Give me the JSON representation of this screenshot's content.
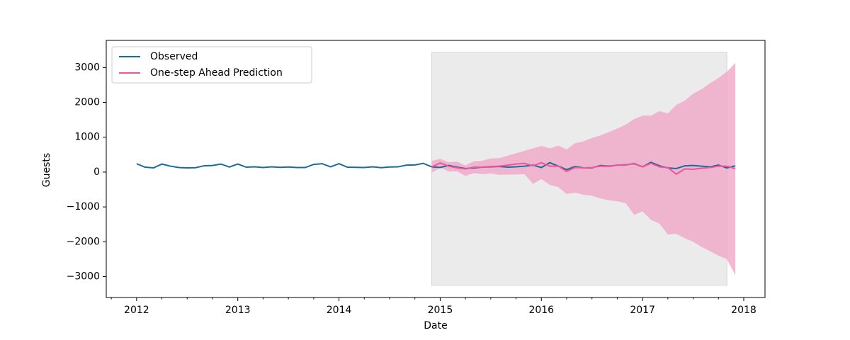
{
  "chart_data": {
    "type": "line",
    "xlabel": "Date",
    "ylabel": "Guests",
    "xlim": [
      2011.7,
      2018.21
    ],
    "xticks": [
      2012,
      2013,
      2014,
      2015,
      2016,
      2017,
      2018
    ],
    "ylim": [
      -3600,
      3780
    ],
    "yticks": [
      {
        "value": -3000,
        "label": "−3000"
      },
      {
        "value": -2000,
        "label": "−2000"
      },
      {
        "value": -1000,
        "label": "−1000"
      },
      0,
      1000,
      2000,
      3000
    ],
    "legend": "upper left",
    "highlight": {
      "xlim": [
        2014.917,
        2017.833
      ],
      "ylim": [
        -3250,
        3440
      ],
      "color": "#ebebeb"
    },
    "series": [
      {
        "name": "Observed",
        "color": "#1a6b9a",
        "x": [
          2012,
          2012.083,
          2012.167,
          2012.25,
          2012.333,
          2012.417,
          2012.5,
          2012.583,
          2012.667,
          2012.75,
          2012.833,
          2012.917,
          2013,
          2013.083,
          2013.167,
          2013.25,
          2013.333,
          2013.417,
          2013.5,
          2013.583,
          2013.667,
          2013.75,
          2013.833,
          2013.917,
          2014,
          2014.083,
          2014.167,
          2014.25,
          2014.333,
          2014.417,
          2014.5,
          2014.583,
          2014.667,
          2014.75,
          2014.833,
          2014.917,
          2015,
          2015.083,
          2015.167,
          2015.25,
          2015.333,
          2015.417,
          2015.5,
          2015.583,
          2015.667,
          2015.75,
          2015.833,
          2015.917,
          2016,
          2016.083,
          2016.167,
          2016.25,
          2016.333,
          2016.417,
          2016.5,
          2016.583,
          2016.667,
          2016.75,
          2016.833,
          2016.917,
          2017,
          2017.083,
          2017.167,
          2017.25,
          2017.333,
          2017.417,
          2017.5,
          2017.583,
          2017.667,
          2017.75,
          2017.833,
          2017.917
        ],
        "values": [
          240,
          140,
          120,
          230,
          170,
          130,
          120,
          125,
          180,
          190,
          230,
          145,
          230,
          140,
          150,
          130,
          150,
          135,
          145,
          130,
          130,
          220,
          240,
          150,
          240,
          140,
          135,
          130,
          150,
          125,
          145,
          150,
          200,
          205,
          250,
          150,
          130,
          190,
          140,
          100,
          120,
          140,
          150,
          160,
          140,
          150,
          170,
          200,
          130,
          270,
          170,
          70,
          160,
          120,
          120,
          190,
          170,
          200,
          210,
          240,
          150,
          280,
          180,
          120,
          100,
          180,
          190,
          170,
          150,
          200,
          120,
          180
        ]
      },
      {
        "name": "One-step Ahead Prediction",
        "color": "#f0559a",
        "band_color": "#f0a8c8",
        "x": [
          2014.917,
          2015,
          2015.083,
          2015.167,
          2015.25,
          2015.333,
          2015.417,
          2015.5,
          2015.583,
          2015.667,
          2015.75,
          2015.833,
          2015.917,
          2016,
          2016.083,
          2016.167,
          2016.25,
          2016.333,
          2016.417,
          2016.5,
          2016.583,
          2016.667,
          2016.75,
          2016.833,
          2016.917,
          2017,
          2017.083,
          2017.167,
          2017.25,
          2017.333,
          2017.417,
          2017.5,
          2017.583,
          2017.667,
          2017.75,
          2017.833,
          2017.917
        ],
        "values": [
          150,
          260,
          170,
          120,
          90,
          140,
          140,
          160,
          170,
          200,
          230,
          250,
          180,
          270,
          170,
          170,
          20,
          130,
          120,
          130,
          170,
          160,
          200,
          200,
          250,
          150,
          250,
          150,
          130,
          -60,
          90,
          80,
          110,
          130,
          170,
          170,
          100
        ],
        "upper": [
          320,
          380,
          280,
          300,
          190,
          310,
          330,
          390,
          400,
          470,
          540,
          610,
          680,
          750,
          680,
          760,
          650,
          830,
          880,
          980,
          1050,
          1150,
          1250,
          1360,
          1520,
          1620,
          1620,
          1750,
          1680,
          1930,
          2050,
          2250,
          2380,
          2550,
          2700,
          2880,
          3130
        ],
        "lower": [
          -20,
          130,
          20,
          20,
          -110,
          -30,
          -60,
          -40,
          -80,
          -70,
          -70,
          -60,
          -340,
          -200,
          -370,
          -430,
          -630,
          -590,
          -650,
          -680,
          -760,
          -810,
          -840,
          -890,
          -1230,
          -1130,
          -1370,
          -1480,
          -1790,
          -1770,
          -1900,
          -2000,
          -2150,
          -2270,
          -2400,
          -2500,
          -2960
        ]
      }
    ]
  }
}
